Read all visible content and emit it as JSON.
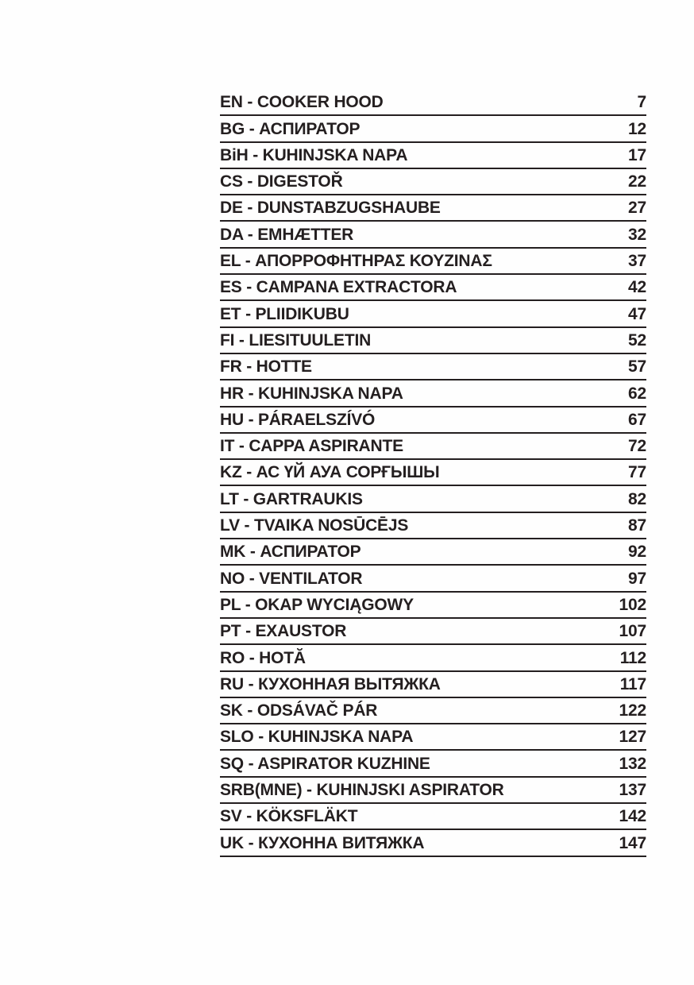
{
  "document": {
    "type": "table-of-contents",
    "text_color": "#241f20",
    "background_color": "#fefefe"
  },
  "toc": {
    "entries": [
      {
        "label": "EN - COOKER HOOD",
        "page": "7"
      },
      {
        "label": "BG - АСПИРАТОР",
        "page": "12"
      },
      {
        "label": "BiH - KUHINJSKA NAPA",
        "page": "17"
      },
      {
        "label": "CS - DIGESTOŘ",
        "page": "22"
      },
      {
        "label": "DE - DUNSTABZUGSHAUBE",
        "page": "27"
      },
      {
        "label": "DA - EMHÆTTER",
        "page": "32"
      },
      {
        "label": "EL - ΑΠΟΡΡΟΦΗΤΗΡΑΣ ΚΟΥΖΙΝΑΣ",
        "page": "37"
      },
      {
        "label": "ES - CAMPANA EXTRACTORA",
        "page": "42"
      },
      {
        "label": "ET - PLIIDIKUBU",
        "page": "47"
      },
      {
        "label": "FI - LIESITUULETIN",
        "page": "52"
      },
      {
        "label": "FR - HOTTE",
        "page": "57"
      },
      {
        "label": "HR - KUHINJSKA NAPA",
        "page": "62"
      },
      {
        "label": "HU - PÁRAELSZÍVÓ",
        "page": "67"
      },
      {
        "label": "IT - CAPPA ASPIRANTE",
        "page": "72"
      },
      {
        "label": "KZ - АС ҮЙ АУА СОРҒЫШЫ",
        "page": "77"
      },
      {
        "label": "LT - GARTRAUKIS",
        "page": "82"
      },
      {
        "label": "LV - TVAIKA NOSŪCĒJS",
        "page": "87"
      },
      {
        "label": "MK - АСПИРАТОР",
        "page": "92"
      },
      {
        "label": "NO - VENTILATOR",
        "page": "97"
      },
      {
        "label": "PL - OKAP WYCIĄGOWY",
        "page": "102"
      },
      {
        "label": "PT - EXAUSTOR",
        "page": "107"
      },
      {
        "label": "RO - HOTĂ",
        "page": "112"
      },
      {
        "label": "RU - КУХОННАЯ ВЫТЯЖКА",
        "page": "117"
      },
      {
        "label": "SK - ODSÁVAČ PÁR",
        "page": "122"
      },
      {
        "label": "SLO - KUHINJSKA NAPA",
        "page": "127"
      },
      {
        "label": "SQ - ASPIRATOR KUZHINE",
        "page": "132"
      },
      {
        "label": "SRB(MNE) - KUHINJSKI ASPIRATOR",
        "page": "137"
      },
      {
        "label": "SV - KÖKSFLÄKT",
        "page": "142"
      },
      {
        "label": "UK - КУХОННА ВИТЯЖКА",
        "page": "147"
      }
    ]
  }
}
